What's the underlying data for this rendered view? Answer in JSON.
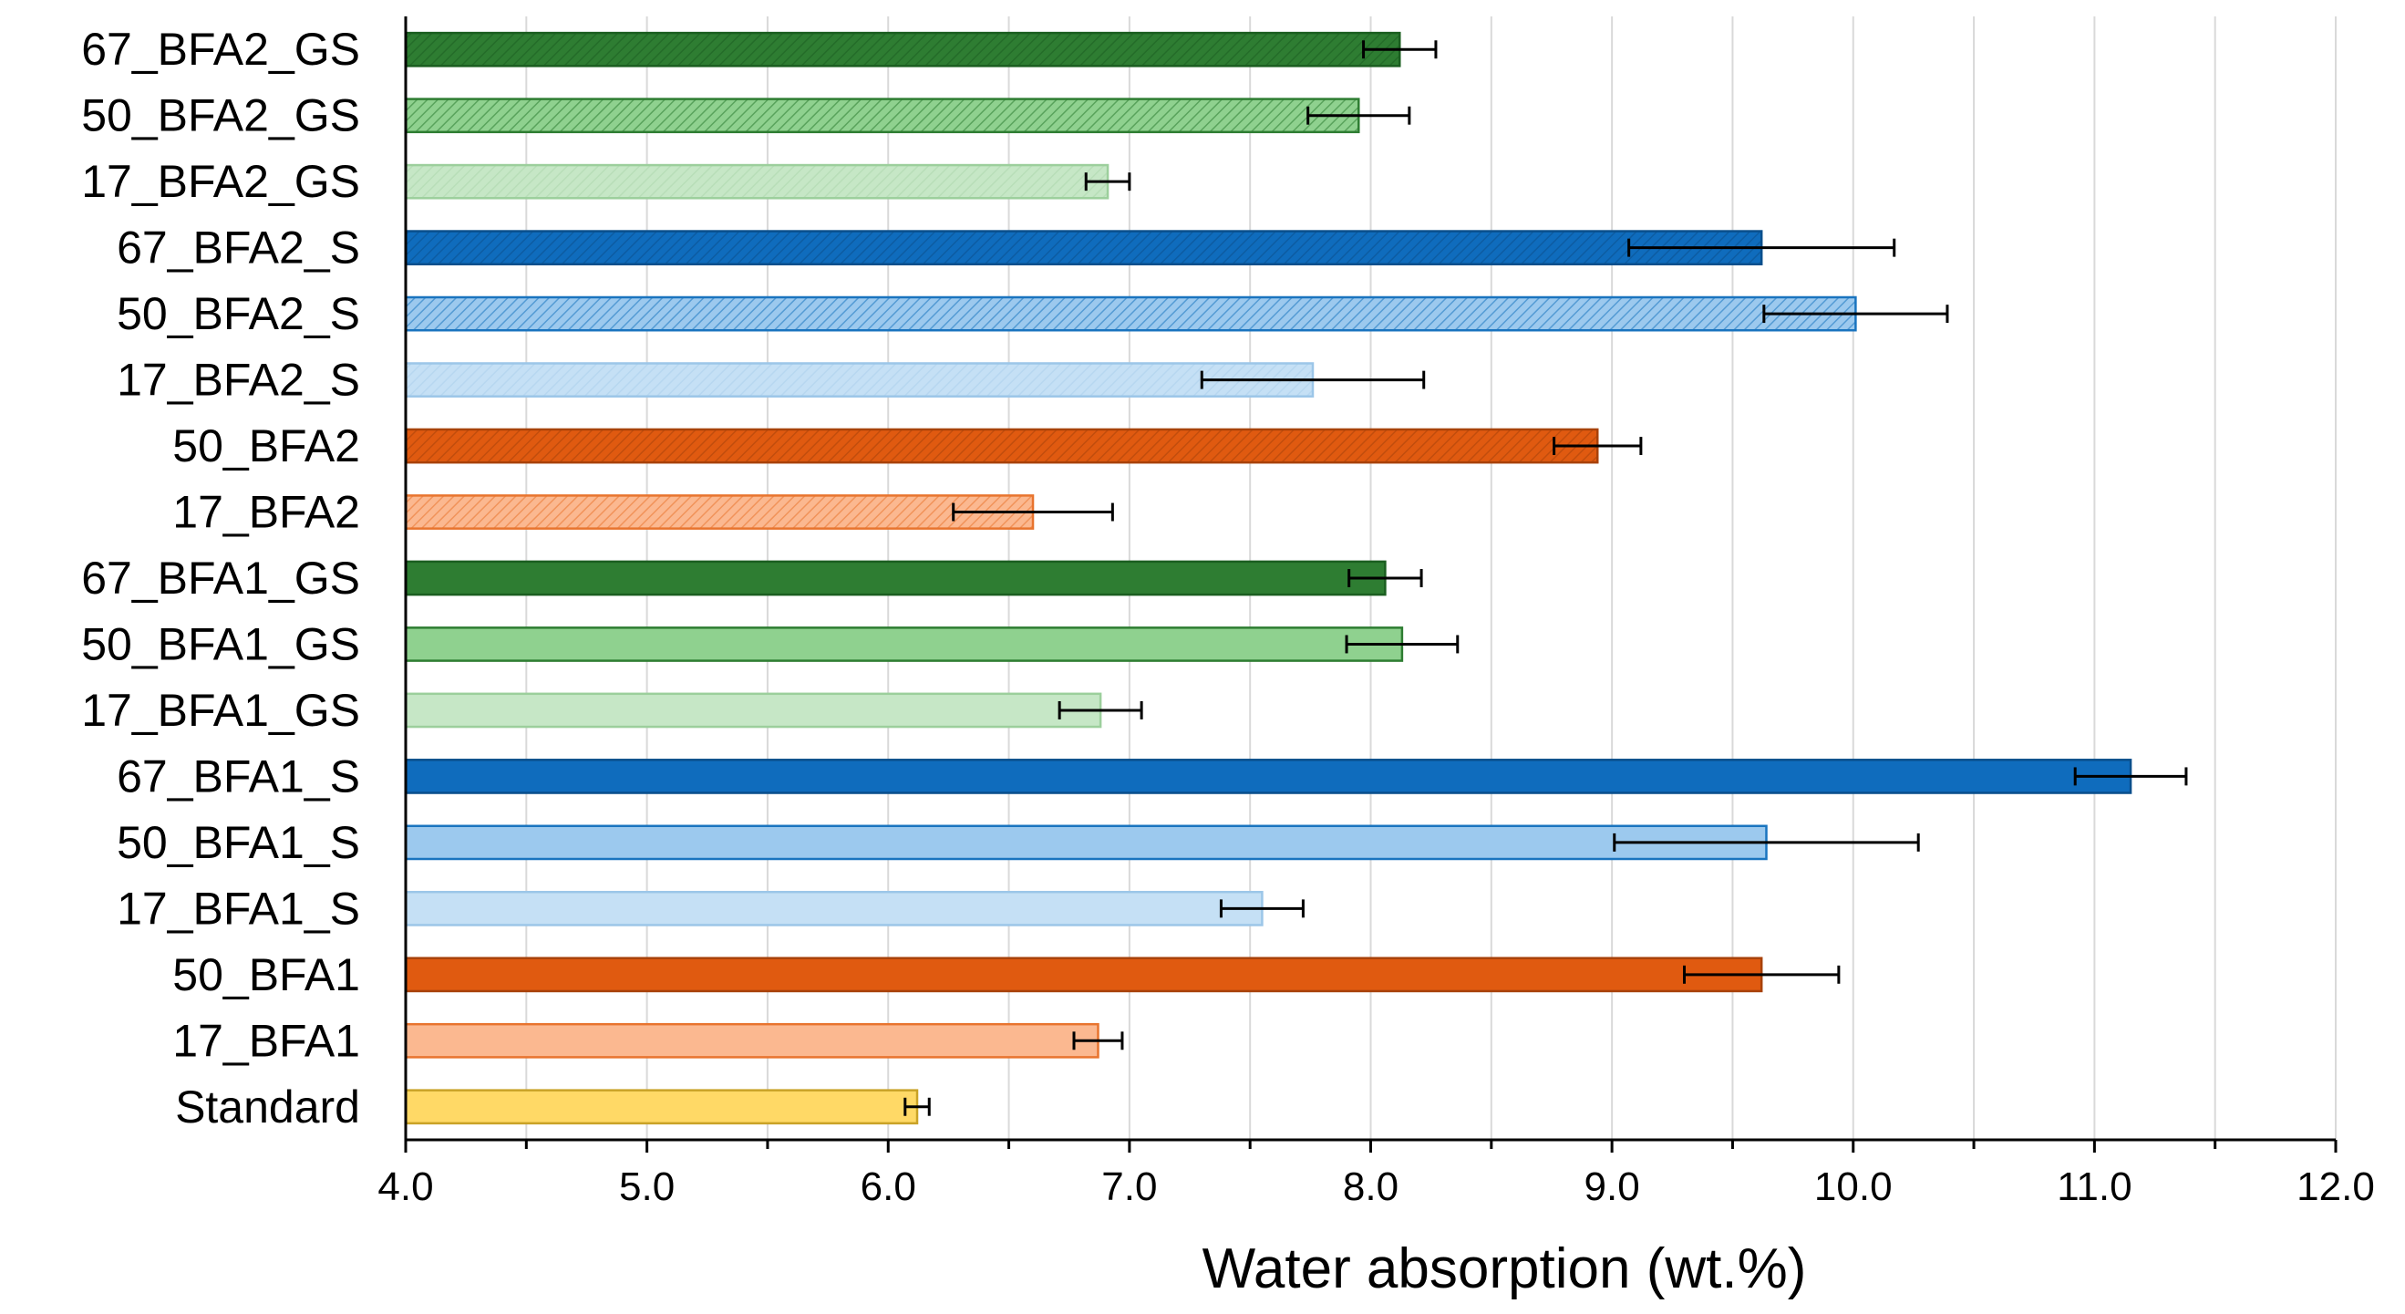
{
  "chart_data": {
    "type": "bar",
    "orientation": "horizontal",
    "xlabel": "Water absorption (wt.%)",
    "xlim": [
      4.0,
      12.0
    ],
    "xticks": [
      "4.0",
      "5.0",
      "6.0",
      "7.0",
      "8.0",
      "9.0",
      "10.0",
      "11.0",
      "12.0"
    ],
    "grid": true,
    "bars": [
      {
        "label": "67_BFA2_GS",
        "value": 8.12,
        "error": 0.15,
        "fill": "#2e7d32",
        "stroke": "#1b5e20",
        "pattern": "hatch-dense"
      },
      {
        "label": "50_BFA2_GS",
        "value": 7.95,
        "error": 0.21,
        "fill": "#8fd18f",
        "stroke": "#2e7d32",
        "pattern": "hatch-dense"
      },
      {
        "label": "17_BFA2_GS",
        "value": 6.91,
        "error": 0.09,
        "fill": "#c6e7c6",
        "stroke": "#9ccf9c",
        "pattern": "hatch-light"
      },
      {
        "label": "67_BFA2_S",
        "value": 9.62,
        "error": 0.55,
        "fill": "#0f6cbd",
        "stroke": "#0a4f8c",
        "pattern": "hatch-dense"
      },
      {
        "label": "50_BFA2_S",
        "value": 10.01,
        "error": 0.38,
        "fill": "#9cc9ee",
        "stroke": "#1a74bf",
        "pattern": "hatch-dense"
      },
      {
        "label": "17_BFA2_S",
        "value": 7.76,
        "error": 0.46,
        "fill": "#c5e0f5",
        "stroke": "#9cc6e8",
        "pattern": "hatch-light"
      },
      {
        "label": "50_BFA2",
        "value": 8.94,
        "error": 0.18,
        "fill": "#e05a10",
        "stroke": "#a8420a",
        "pattern": "hatch-dense"
      },
      {
        "label": "17_BFA2",
        "value": 6.6,
        "error": 0.33,
        "fill": "#fbb890",
        "stroke": "#e8742e",
        "pattern": "hatch-dense"
      },
      {
        "label": "67_BFA1_GS",
        "value": 8.06,
        "error": 0.15,
        "fill": "#2e7d32",
        "stroke": "#1b5e20",
        "pattern": "solid"
      },
      {
        "label": "50_BFA1_GS",
        "value": 8.13,
        "error": 0.23,
        "fill": "#8fd18f",
        "stroke": "#2e7d32",
        "pattern": "solid"
      },
      {
        "label": "17_BFA1_GS",
        "value": 6.88,
        "error": 0.17,
        "fill": "#c6e7c6",
        "stroke": "#9ccf9c",
        "pattern": "solid"
      },
      {
        "label": "67_BFA1_S",
        "value": 11.15,
        "error": 0.23,
        "fill": "#0f6cbd",
        "stroke": "#0a4f8c",
        "pattern": "solid"
      },
      {
        "label": "50_BFA1_S",
        "value": 9.64,
        "error": 0.63,
        "fill": "#9cc9ee",
        "stroke": "#1a74bf",
        "pattern": "solid"
      },
      {
        "label": "17_BFA1_S",
        "value": 7.55,
        "error": 0.17,
        "fill": "#c5e0f5",
        "stroke": "#9cc6e8",
        "pattern": "solid"
      },
      {
        "label": "50_BFA1",
        "value": 9.62,
        "error": 0.32,
        "fill": "#e05a10",
        "stroke": "#a8420a",
        "pattern": "solid"
      },
      {
        "label": "17_BFA1",
        "value": 6.87,
        "error": 0.1,
        "fill": "#fbb890",
        "stroke": "#e8742e",
        "pattern": "solid"
      },
      {
        "label": "Standard",
        "value": 6.12,
        "error": 0.05,
        "fill": "#ffd966",
        "stroke": "#c9a227",
        "pattern": "solid"
      }
    ]
  }
}
